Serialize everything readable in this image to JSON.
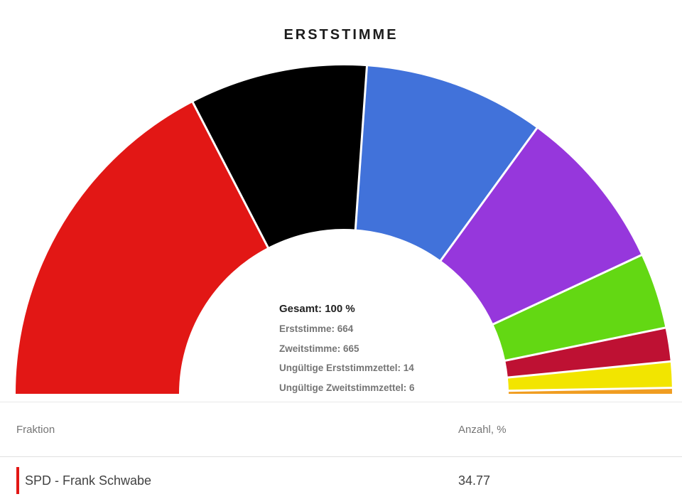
{
  "title": "ERSTSTIMME",
  "chart_data": {
    "type": "half-donut",
    "title": "ERSTSTIMME",
    "unit": "percent",
    "angle_span_deg": 180,
    "legend": "none",
    "series": [
      {
        "id": "spd",
        "label": "SPD - Frank Schwabe",
        "value": 34.77,
        "color": "#E21715"
      },
      {
        "id": "black",
        "label": "",
        "value": 17.47,
        "color": "#000000"
      },
      {
        "id": "blue",
        "label": "",
        "value": 17.77,
        "color": "#4172DA"
      },
      {
        "id": "purple",
        "label": "",
        "value": 16.11,
        "color": "#9637DC"
      },
      {
        "id": "green",
        "label": "",
        "value": 7.43,
        "color": "#63D813"
      },
      {
        "id": "dark-red",
        "label": "",
        "value": 3.31,
        "color": "#BE1133"
      },
      {
        "id": "yellow",
        "label": "",
        "value": 2.56,
        "color": "#F2E500"
      },
      {
        "id": "orange",
        "label": "",
        "value": 0.58,
        "color": "#F09D21"
      }
    ]
  },
  "center_info": {
    "total": "Gesamt: 100 %",
    "lines": [
      "Erststimme: 664",
      "Zweitstimme: 665",
      "Ungültige Erststimmzettel: 14",
      "Ungültige Zweitstimmzettel: 6"
    ]
  },
  "table": {
    "columns": [
      "Fraktion",
      "Anzahl, %"
    ],
    "rows": [
      {
        "fraktion": "SPD - Frank Schwabe",
        "anzahl": "34.77",
        "accent_color": "#E21715"
      }
    ]
  },
  "colors": {
    "title_text": "#1c1c1c",
    "muted_text": "#757575",
    "row_text": "#424242",
    "divider": "#e0e0e0",
    "background": "#ffffff"
  }
}
